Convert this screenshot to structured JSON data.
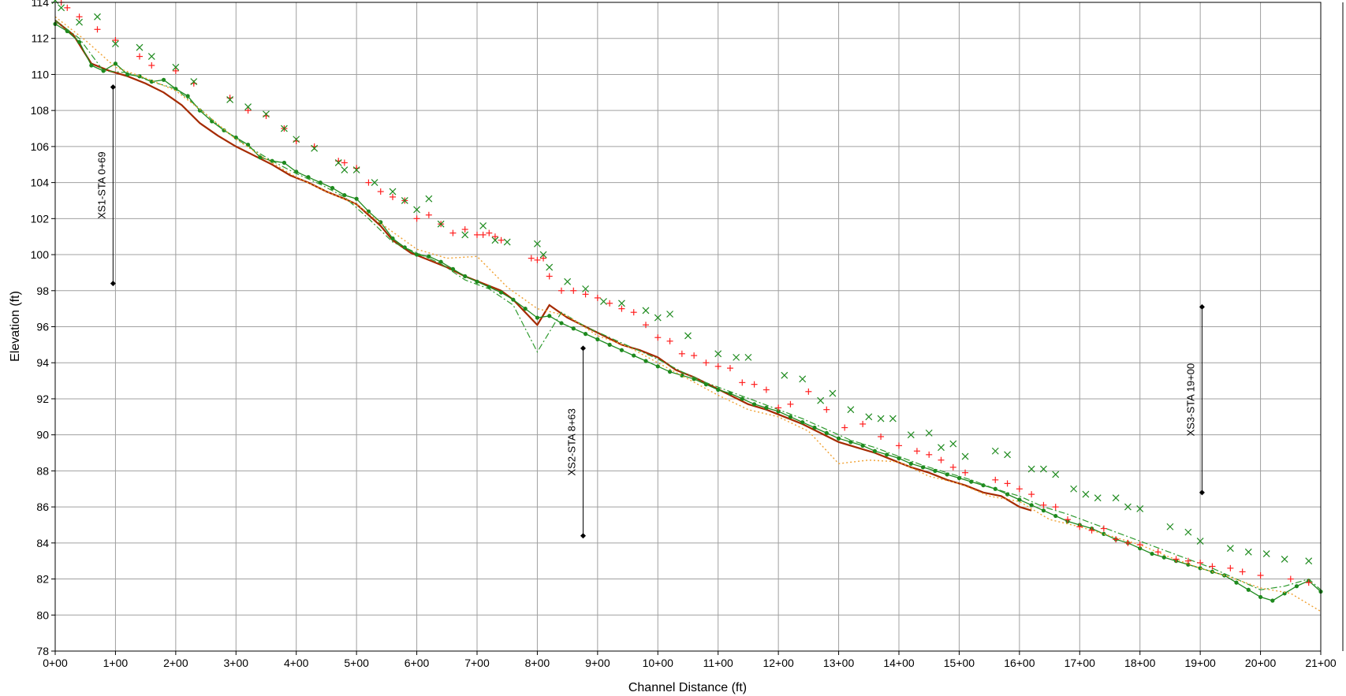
{
  "chart_data": {
    "type": "line",
    "title": "",
    "xlabel": "Channel Distance (ft)",
    "ylabel": "Elevation (ft)",
    "xlim": [
      0,
      2100
    ],
    "ylim": [
      78,
      114
    ],
    "grid": true,
    "legend": "none",
    "x_ticks": [
      {
        "v": 0,
        "label": "0+00"
      },
      {
        "v": 100,
        "label": "1+00"
      },
      {
        "v": 200,
        "label": "2+00"
      },
      {
        "v": 300,
        "label": "3+00"
      },
      {
        "v": 400,
        "label": "4+00"
      },
      {
        "v": 500,
        "label": "5+00"
      },
      {
        "v": 600,
        "label": "6+00"
      },
      {
        "v": 700,
        "label": "7+00"
      },
      {
        "v": 800,
        "label": "8+00"
      },
      {
        "v": 900,
        "label": "9+00"
      },
      {
        "v": 1000,
        "label": "10+00"
      },
      {
        "v": 1100,
        "label": "11+00"
      },
      {
        "v": 1200,
        "label": "12+00"
      },
      {
        "v": 1300,
        "label": "13+00"
      },
      {
        "v": 1400,
        "label": "14+00"
      },
      {
        "v": 1500,
        "label": "15+00"
      },
      {
        "v": 1600,
        "label": "16+00"
      },
      {
        "v": 1700,
        "label": "17+00"
      },
      {
        "v": 1800,
        "label": "18+00"
      },
      {
        "v": 1900,
        "label": "19+00"
      },
      {
        "v": 2000,
        "label": "20+00"
      },
      {
        "v": 2100,
        "label": "21+00"
      }
    ],
    "y_ticks": [
      {
        "v": 78,
        "label": "78"
      },
      {
        "v": 80,
        "label": "80"
      },
      {
        "v": 82,
        "label": "82"
      },
      {
        "v": 84,
        "label": "84"
      },
      {
        "v": 86,
        "label": "86"
      },
      {
        "v": 88,
        "label": "88"
      },
      {
        "v": 90,
        "label": "90"
      },
      {
        "v": 92,
        "label": "92"
      },
      {
        "v": 94,
        "label": "94"
      },
      {
        "v": 96,
        "label": "96"
      },
      {
        "v": 98,
        "label": "98"
      },
      {
        "v": 100,
        "label": "100"
      },
      {
        "v": 102,
        "label": "102"
      },
      {
        "v": 104,
        "label": "104"
      },
      {
        "v": 106,
        "label": "106"
      },
      {
        "v": 108,
        "label": "108"
      },
      {
        "v": 110,
        "label": "110"
      },
      {
        "v": 112,
        "label": "112"
      },
      {
        "v": 114,
        "label": "114"
      }
    ],
    "series": [
      {
        "style": "line",
        "color": "#a52a00",
        "x": [
          0,
          30,
          60,
          90,
          120,
          150,
          180,
          210,
          240,
          270,
          300,
          330,
          360,
          390,
          420,
          450,
          480,
          500,
          520,
          540,
          560,
          590,
          620,
          650,
          680,
          710,
          740,
          760,
          780,
          800,
          820,
          850,
          880,
          910,
          940,
          970,
          1000,
          1030,
          1060,
          1090,
          1120,
          1150,
          1180,
          1210,
          1240,
          1270,
          1300,
          1330,
          1360,
          1390,
          1420,
          1450,
          1480,
          1510,
          1540,
          1570,
          1600,
          1620
        ],
        "y": [
          113,
          112.2,
          110.6,
          110.2,
          109.9,
          109.5,
          109.0,
          108.3,
          107.3,
          106.6,
          106.0,
          105.5,
          105.0,
          104.4,
          104.0,
          103.5,
          103.1,
          102.8,
          102.2,
          101.6,
          100.8,
          100.1,
          99.7,
          99.3,
          98.8,
          98.4,
          98.0,
          97.5,
          96.8,
          96.1,
          97.2,
          96.5,
          96.0,
          95.5,
          95.0,
          94.7,
          94.3,
          93.6,
          93.2,
          92.7,
          92.2,
          91.7,
          91.4,
          91.0,
          90.6,
          90.1,
          89.6,
          89.3,
          89.0,
          88.6,
          88.2,
          87.9,
          87.5,
          87.2,
          86.8,
          86.6,
          86.0,
          85.8
        ]
      },
      {
        "style": "line-markers",
        "color": "#1e8a1e",
        "x": [
          0,
          20,
          40,
          60,
          80,
          100,
          120,
          140,
          160,
          180,
          200,
          220,
          240,
          260,
          280,
          300,
          320,
          340,
          360,
          380,
          400,
          420,
          440,
          460,
          480,
          500,
          520,
          540,
          560,
          580,
          600,
          620,
          640,
          660,
          680,
          700,
          720,
          740,
          760,
          780,
          800,
          820,
          840,
          860,
          880,
          900,
          920,
          940,
          960,
          980,
          1000,
          1020,
          1040,
          1060,
          1080,
          1100,
          1120,
          1140,
          1160,
          1180,
          1200,
          1220,
          1240,
          1260,
          1280,
          1300,
          1320,
          1340,
          1360,
          1380,
          1400,
          1420,
          1440,
          1460,
          1480,
          1500,
          1520,
          1540,
          1560,
          1580,
          1600,
          1620,
          1640,
          1660,
          1680,
          1700,
          1720,
          1740,
          1760,
          1780,
          1800,
          1820,
          1840,
          1860,
          1880,
          1900,
          1920,
          1940,
          1960,
          1980,
          2000,
          2020,
          2040,
          2060,
          2080,
          2100
        ],
        "y": [
          112.8,
          112.4,
          111.8,
          110.5,
          110.2,
          110.6,
          110.0,
          109.9,
          109.6,
          109.7,
          109.2,
          108.8,
          108.0,
          107.4,
          106.9,
          106.5,
          106.1,
          105.4,
          105.2,
          105.1,
          104.6,
          104.3,
          104.0,
          103.7,
          103.3,
          103.1,
          102.4,
          101.8,
          100.9,
          100.4,
          100.0,
          99.9,
          99.6,
          99.2,
          98.8,
          98.5,
          98.2,
          97.9,
          97.5,
          97.0,
          96.5,
          96.6,
          96.2,
          95.9,
          95.6,
          95.3,
          95.0,
          94.7,
          94.4,
          94.1,
          93.8,
          93.5,
          93.3,
          93.1,
          92.8,
          92.5,
          92.3,
          92.0,
          91.7,
          91.5,
          91.3,
          91.0,
          90.7,
          90.4,
          90.1,
          89.8,
          89.6,
          89.4,
          89.1,
          88.9,
          88.7,
          88.4,
          88.2,
          88.0,
          87.8,
          87.6,
          87.4,
          87.2,
          87.0,
          86.7,
          86.4,
          86.1,
          85.8,
          85.5,
          85.2,
          85.0,
          84.8,
          84.5,
          84.2,
          84.0,
          83.7,
          83.4,
          83.2,
          83.0,
          82.8,
          82.6,
          82.4,
          82.2,
          81.8,
          81.4,
          81.0,
          80.8,
          81.2,
          81.6,
          81.9,
          81.3
        ]
      },
      {
        "style": "dashdot",
        "color": "#2e9a2e",
        "x": [
          0,
          40,
          80,
          120,
          160,
          200,
          240,
          280,
          320,
          360,
          400,
          440,
          480,
          520,
          560,
          600,
          640,
          680,
          720,
          760,
          800,
          840,
          880,
          920,
          960,
          1000,
          1040,
          1080,
          1120,
          1160,
          1200,
          1240,
          1280,
          1320,
          1360,
          1400,
          1440,
          1480,
          1520,
          1560,
          1600,
          1640,
          1680,
          1720,
          1760,
          1800,
          1840,
          1880,
          1920,
          1960,
          2000,
          2040,
          2080,
          2100
        ],
        "y": [
          113,
          112,
          110.2,
          110.1,
          109.6,
          109.2,
          108.1,
          106.9,
          106.0,
          105.2,
          104.5,
          103.9,
          103.2,
          102.0,
          100.7,
          100.1,
          99.5,
          98.6,
          98.1,
          97.2,
          94.6,
          96.8,
          96.0,
          95.4,
          94.8,
          94.2,
          93.5,
          92.9,
          92.4,
          91.9,
          91.4,
          90.9,
          90.3,
          89.7,
          89.3,
          88.8,
          88.3,
          87.9,
          87.5,
          87.0,
          86.6,
          86.0,
          85.6,
          85.1,
          84.6,
          84.1,
          83.6,
          83.1,
          82.6,
          82.0,
          81.4,
          81.6,
          82.0,
          81.4
        ]
      },
      {
        "style": "dotted",
        "color": "#f0a030",
        "x": [
          0,
          50,
          100,
          150,
          200,
          250,
          300,
          350,
          400,
          450,
          500,
          550,
          600,
          650,
          700,
          750,
          800,
          850,
          900,
          950,
          1000,
          1050,
          1100,
          1150,
          1200,
          1250,
          1300,
          1350,
          1400,
          1450,
          1500,
          1550,
          1600,
          1650,
          1700,
          1750,
          1800,
          1850,
          1900,
          1950,
          2000,
          2050,
          2100
        ],
        "y": [
          113.2,
          111.9,
          110.4,
          109.8,
          109.1,
          107.8,
          106.4,
          105.3,
          104.3,
          103.5,
          102.8,
          101.5,
          100.3,
          99.8,
          99.9,
          98.2,
          97.0,
          96.6,
          95.5,
          94.9,
          94.0,
          93.1,
          92.2,
          91.4,
          91.0,
          90.2,
          88.4,
          88.6,
          88.5,
          87.7,
          87.3,
          86.6,
          86.3,
          85.3,
          84.9,
          84.4,
          83.9,
          83.2,
          82.6,
          82.1,
          81.5,
          81.2,
          80.2
        ]
      },
      {
        "style": "markers-plus",
        "color": "#ff2020",
        "x": [
          10,
          20,
          40,
          70,
          100,
          140,
          160,
          200,
          230,
          290,
          320,
          350,
          380,
          400,
          430,
          470,
          480,
          500,
          520,
          540,
          560,
          580,
          600,
          620,
          640,
          660,
          680,
          700,
          710,
          720,
          730,
          740,
          790,
          800,
          810,
          820,
          840,
          860,
          880,
          900,
          920,
          940,
          960,
          980,
          1000,
          1020,
          1040,
          1060,
          1080,
          1100,
          1120,
          1140,
          1160,
          1180,
          1200,
          1220,
          1250,
          1280,
          1310,
          1340,
          1370,
          1400,
          1430,
          1450,
          1470,
          1490,
          1510,
          1560,
          1580,
          1600,
          1620,
          1640,
          1660,
          1680,
          1700,
          1720,
          1740,
          1760,
          1780,
          1800,
          1830,
          1860,
          1880,
          1900,
          1920,
          1950,
          1970,
          2000,
          2050,
          2080
        ],
        "y": [
          114,
          113.7,
          113.2,
          112.5,
          111.9,
          111.0,
          110.5,
          110.2,
          109.5,
          108.7,
          108.0,
          107.7,
          107.0,
          106.3,
          106.0,
          105.2,
          105.1,
          104.8,
          104.0,
          103.5,
          103.2,
          103.0,
          102.0,
          102.2,
          101.7,
          101.2,
          101.4,
          101.1,
          101.1,
          101.2,
          101.0,
          100.8,
          99.8,
          99.7,
          99.8,
          98.8,
          98.0,
          98.0,
          97.8,
          97.6,
          97.3,
          97.0,
          96.8,
          96.1,
          95.4,
          95.2,
          94.5,
          94.4,
          94.0,
          93.8,
          93.7,
          92.9,
          92.8,
          92.5,
          91.5,
          91.7,
          92.4,
          91.4,
          90.4,
          90.6,
          89.9,
          89.4,
          89.1,
          88.9,
          88.6,
          88.2,
          87.9,
          87.5,
          87.3,
          87.0,
          86.7,
          86.1,
          86.0,
          85.3,
          84.9,
          84.7,
          84.8,
          84.2,
          84.0,
          83.9,
          83.5,
          83.1,
          83.0,
          82.9,
          82.7,
          82.6,
          82.4,
          82.2,
          82.0,
          81.8
        ],
        "sample_count_note": ""
      },
      {
        "style": "markers-x",
        "color": "#1e8a1e",
        "x": [
          0,
          10,
          40,
          70,
          100,
          140,
          160,
          200,
          230,
          290,
          320,
          350,
          380,
          400,
          430,
          470,
          480,
          500,
          530,
          560,
          580,
          600,
          620,
          640,
          680,
          710,
          730,
          750,
          800,
          810,
          820,
          850,
          880,
          910,
          940,
          980,
          1000,
          1020,
          1050,
          1100,
          1130,
          1150,
          1210,
          1240,
          1270,
          1290,
          1320,
          1350,
          1370,
          1390,
          1420,
          1450,
          1470,
          1490,
          1510,
          1560,
          1580,
          1620,
          1640,
          1660,
          1690,
          1710,
          1730,
          1760,
          1780,
          1800,
          1850,
          1880,
          1900,
          1950,
          1980,
          2010,
          2040,
          2080
        ],
        "y": [
          114.1,
          113.7,
          112.9,
          113.2,
          111.7,
          111.5,
          111.0,
          110.4,
          109.6,
          108.6,
          108.2,
          107.8,
          107.0,
          106.4,
          105.9,
          105.1,
          104.7,
          104.7,
          104.0,
          103.5,
          103.0,
          102.5,
          103.1,
          101.7,
          101.1,
          101.6,
          100.8,
          100.7,
          100.6,
          100.0,
          99.3,
          98.5,
          98.1,
          97.4,
          97.3,
          96.9,
          96.5,
          96.7,
          95.5,
          94.5,
          94.3,
          94.3,
          93.3,
          93.1,
          91.9,
          92.3,
          91.4,
          91.0,
          90.9,
          90.9,
          90.0,
          90.1,
          89.3,
          89.5,
          88.8,
          89.1,
          88.9,
          88.1,
          88.1,
          87.8,
          87.0,
          86.7,
          86.5,
          86.5,
          86.0,
          85.9,
          84.9,
          84.6,
          84.1,
          83.7,
          83.5,
          83.4,
          83.1,
          83.0
        ]
      }
    ],
    "annotations": [
      {
        "label": "XS1-STA 0+69",
        "x": 96,
        "y_top": 109.3,
        "y_bottom": 98.4
      },
      {
        "label": "XS2-STA 8+63",
        "x": 876,
        "y_top": 94.8,
        "y_bottom": 84.4
      },
      {
        "label": "XS3-STA 19+00",
        "x": 1903,
        "y_top": 97.1,
        "y_bottom": 86.8
      }
    ]
  }
}
